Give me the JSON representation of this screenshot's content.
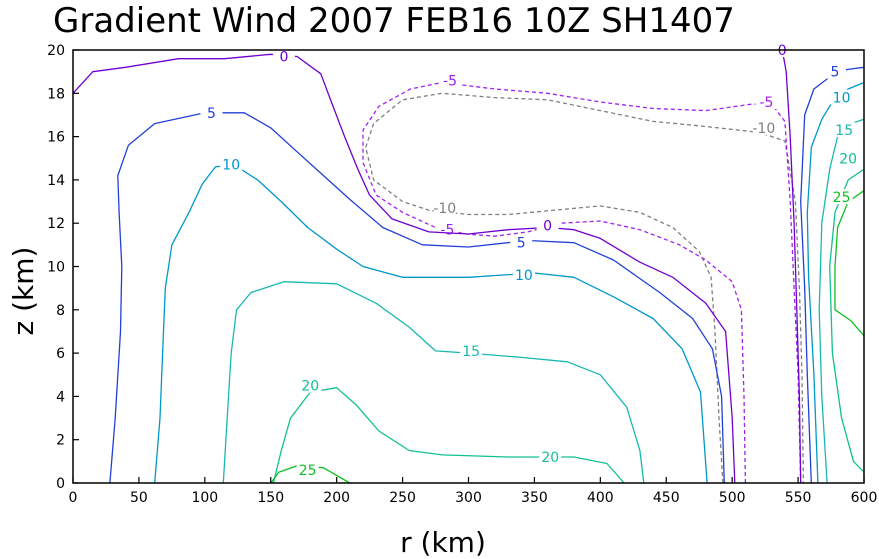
{
  "chart_data": {
    "type": "contour",
    "title": "Gradient Wind 2007 FEB16 10Z   SH1407",
    "xlabel": "r (km)",
    "ylabel": "z (km)",
    "xlim": [
      0,
      600
    ],
    "ylim": [
      0,
      20
    ],
    "xticks": [
      "0",
      "50",
      "100",
      "150",
      "200",
      "250",
      "300",
      "350",
      "400",
      "450",
      "500",
      "550",
      "600"
    ],
    "yticks": [
      "0",
      "2",
      "4",
      "6",
      "8",
      "10",
      "12",
      "14",
      "16",
      "18",
      "20"
    ],
    "grid": false,
    "levels": [
      {
        "value": -10,
        "label": "-10",
        "color": "#808080",
        "dashed": true,
        "paths": [
          [
            [
              493,
              0
            ],
            [
              490,
              3
            ],
            [
              487,
              7
            ],
            [
              484,
              9.5
            ],
            [
              475,
              10.7
            ],
            [
              455,
              11.8
            ],
            [
              430,
              12.5
            ],
            [
              400,
              12.8
            ],
            [
              365,
              12.6
            ],
            [
              330,
              12.4
            ],
            [
              300,
              12.4
            ],
            [
              270,
              12.6
            ],
            [
              250,
              13
            ],
            [
              228,
              14
            ],
            [
              222,
              15.5
            ],
            [
              228,
              16.6
            ],
            [
              250,
              17.7
            ],
            [
              280,
              18
            ],
            [
              320,
              17.8
            ],
            [
              360,
              17.7
            ],
            [
              400,
              17.2
            ],
            [
              440,
              16.7
            ],
            [
              475,
              16.5
            ],
            [
              520,
              16.2
            ],
            [
              540,
              15.8
            ],
            [
              548,
              13
            ],
            [
              551,
              9
            ],
            [
              553,
              5
            ],
            [
              554,
              0
            ]
          ]
        ],
        "label_pos": [
          [
            282,
            12.7
          ],
          [
            524,
            16.4
          ]
        ]
      },
      {
        "value": -5,
        "label": "-5",
        "color": "#a020f0",
        "dashed": true,
        "paths": [
          [
            [
              510,
              0
            ],
            [
              509,
              4
            ],
            [
              507,
              8
            ],
            [
              500,
              9.3
            ],
            [
              480,
              10.3
            ],
            [
              460,
              11
            ],
            [
              430,
              11.7
            ],
            [
              400,
              12.1
            ],
            [
              370,
              12
            ],
            [
              345,
              11.6
            ],
            [
              320,
              11.4
            ],
            [
              298,
              11.5
            ],
            [
              275,
              11.8
            ],
            [
              250,
              12.5
            ],
            [
              230,
              13.3
            ],
            [
              220,
              14.8
            ],
            [
              220,
              16.3
            ],
            [
              232,
              17.4
            ],
            [
              256,
              18.2
            ],
            [
              280,
              18.5
            ],
            [
              320,
              18.2
            ],
            [
              360,
              18
            ],
            [
              400,
              17.6
            ],
            [
              440,
              17.3
            ],
            [
              480,
              17.2
            ],
            [
              515,
              17.5
            ],
            [
              530,
              17.5
            ],
            [
              540,
              16.7
            ],
            [
              544,
              13
            ],
            [
              547,
              9
            ],
            [
              550,
              5
            ],
            [
              552,
              0
            ]
          ]
        ],
        "label_pos": [
          [
            286,
            18.6
          ],
          [
            526,
            17.6
          ],
          [
            284,
            11.7
          ]
        ]
      },
      {
        "value": 0,
        "label": "0",
        "color": "#7000d0",
        "dashed": false,
        "paths": [
          [
            [
              0,
              18
            ],
            [
              15,
              19
            ],
            [
              40,
              19.2
            ],
            [
              80,
              19.6
            ],
            [
              115,
              19.6
            ],
            [
              150,
              19.8
            ],
            [
              170,
              19.7
            ],
            [
              188,
              18.9
            ],
            [
              196,
              17.6
            ],
            [
              206,
              16
            ],
            [
              216,
              14.5
            ],
            [
              225,
              13.3
            ],
            [
              242,
              12.2
            ],
            [
              270,
              11.6
            ],
            [
              300,
              11.5
            ],
            [
              330,
              11.7
            ],
            [
              360,
              11.8
            ],
            [
              380,
              11.7
            ],
            [
              400,
              11.3
            ],
            [
              430,
              10.2
            ],
            [
              455,
              9.5
            ],
            [
              480,
              8.3
            ],
            [
              495,
              7
            ],
            [
              500,
              3
            ],
            [
              502,
              0
            ]
          ],
          [
            [
              538,
              20
            ],
            [
              541,
              19
            ],
            [
              544,
              16
            ],
            [
              547,
              12
            ],
            [
              549,
              8
            ],
            [
              551,
              4
            ],
            [
              552,
              0
            ]
          ]
        ],
        "label_pos": [
          [
            160,
            19.7
          ],
          [
            360,
            11.9
          ],
          [
            538,
            20
          ]
        ]
      },
      {
        "value": 5,
        "label": "5",
        "color": "#2040d8",
        "dashed": false,
        "paths": [
          [
            [
              28,
              0
            ],
            [
              32,
              3
            ],
            [
              36,
              7
            ],
            [
              37,
              10
            ],
            [
              35,
              12.5
            ],
            [
              34,
              14.2
            ],
            [
              42,
              15.6
            ],
            [
              62,
              16.6
            ],
            [
              100,
              17.1
            ],
            [
              130,
              17.1
            ],
            [
              150,
              16.4
            ],
            [
              170,
              15.3
            ],
            [
              190,
              14.2
            ],
            [
              210,
              13.1
            ],
            [
              235,
              11.8
            ],
            [
              265,
              11
            ],
            [
              300,
              10.9
            ],
            [
              345,
              11.2
            ],
            [
              380,
              11.1
            ],
            [
              410,
              10.3
            ],
            [
              445,
              8.8
            ],
            [
              470,
              7.6
            ],
            [
              485,
              6.2
            ],
            [
              492,
              4
            ],
            [
              494,
              0
            ]
          ],
          [
            [
              600,
              19.2
            ],
            [
              587,
              19.1
            ],
            [
              575,
              18.8
            ],
            [
              562,
              18.2
            ],
            [
              555,
              17
            ],
            [
              552,
              13
            ],
            [
              555,
              9
            ],
            [
              557,
              5
            ],
            [
              560,
              0
            ]
          ]
        ],
        "label_pos": [
          [
            105,
            17.1
          ],
          [
            340,
            11.1
          ],
          [
            578,
            19
          ]
        ]
      },
      {
        "value": 10,
        "label": "10",
        "color": "#0098c8",
        "dashed": false,
        "paths": [
          [
            [
              62,
              0
            ],
            [
              66,
              3
            ],
            [
              68,
              6
            ],
            [
              70,
              9
            ],
            [
              75,
              11
            ],
            [
              88,
              12.5
            ],
            [
              98,
              13.8
            ],
            [
              108,
              14.6
            ],
            [
              122,
              14.7
            ],
            [
              140,
              14
            ],
            [
              158,
              13
            ],
            [
              178,
              11.8
            ],
            [
              200,
              10.8
            ],
            [
              220,
              10
            ],
            [
              250,
              9.5
            ],
            [
              300,
              9.5
            ],
            [
              350,
              9.7
            ],
            [
              380,
              9.5
            ],
            [
              410,
              8.6
            ],
            [
              440,
              7.6
            ],
            [
              462,
              6.2
            ],
            [
              476,
              4.2
            ],
            [
              481,
              0
            ]
          ],
          [
            [
              600,
              18.5
            ],
            [
              588,
              18.2
            ],
            [
              578,
              17.8
            ],
            [
              568,
              16.8
            ],
            [
              560,
              15.5
            ],
            [
              557,
              12.5
            ],
            [
              558,
              9.5
            ],
            [
              562,
              5
            ],
            [
              565,
              0
            ]
          ]
        ],
        "label_pos": [
          [
            120,
            14.7
          ],
          [
            342,
            9.6
          ],
          [
            583,
            17.8
          ]
        ]
      },
      {
        "value": 15,
        "label": "15",
        "color": "#18b8b0",
        "dashed": false,
        "paths": [
          [
            [
              114,
              0
            ],
            [
              117,
              3
            ],
            [
              120,
              6
            ],
            [
              124,
              8
            ],
            [
              135,
              8.8
            ],
            [
              160,
              9.3
            ],
            [
              200,
              9.2
            ],
            [
              230,
              8.3
            ],
            [
              255,
              7.2
            ],
            [
              275,
              6.1
            ],
            [
              300,
              6
            ],
            [
              340,
              5.8
            ],
            [
              375,
              5.6
            ],
            [
              400,
              5
            ],
            [
              420,
              3.5
            ],
            [
              430,
              1.5
            ],
            [
              433,
              0
            ]
          ],
          [
            [
              600,
              16.8
            ],
            [
              590,
              16.6
            ],
            [
              580,
              16
            ],
            [
              574,
              14.5
            ],
            [
              568,
              12
            ],
            [
              566,
              8
            ],
            [
              568,
              4
            ],
            [
              572,
              0
            ]
          ]
        ],
        "label_pos": [
          [
            302,
            6.1
          ],
          [
            585,
            16.3
          ]
        ]
      },
      {
        "value": 20,
        "label": "20",
        "color": "#10c090",
        "dashed": false,
        "paths": [
          [
            [
              152,
              0
            ],
            [
              158,
              1.5
            ],
            [
              165,
              3
            ],
            [
              180,
              4.2
            ],
            [
              200,
              4.4
            ],
            [
              215,
              3.6
            ],
            [
              232,
              2.4
            ],
            [
              255,
              1.5
            ],
            [
              280,
              1.3
            ],
            [
              330,
              1.2
            ],
            [
              380,
              1.2
            ],
            [
              405,
              0.9
            ],
            [
              418,
              0
            ]
          ],
          [
            [
              600,
              14.5
            ],
            [
              588,
              14
            ],
            [
              578,
              12.5
            ],
            [
              574,
              10
            ],
            [
              576,
              6
            ],
            [
              583,
              3
            ],
            [
              592,
              1
            ],
            [
              600,
              0.5
            ]
          ]
        ],
        "label_pos": [
          [
            180,
            4.5
          ],
          [
            362,
            1.2
          ],
          [
            588,
            15
          ]
        ]
      },
      {
        "value": 25,
        "label": "25",
        "color": "#10c020",
        "dashed": false,
        "paths": [
          [
            [
              150,
              0
            ],
            [
              156,
              0.5
            ],
            [
              170,
              0.8
            ],
            [
              190,
              0.7
            ],
            [
              210,
              0
            ]
          ],
          [
            [
              600,
              13.5
            ],
            [
              588,
              13
            ],
            [
              580,
              11.8
            ],
            [
              578,
              10
            ],
            [
              578,
              8
            ],
            [
              590,
              7.5
            ],
            [
              600,
              6.8
            ]
          ]
        ],
        "label_pos": [
          [
            178,
            0.6
          ],
          [
            583,
            13.2
          ]
        ]
      }
    ]
  }
}
